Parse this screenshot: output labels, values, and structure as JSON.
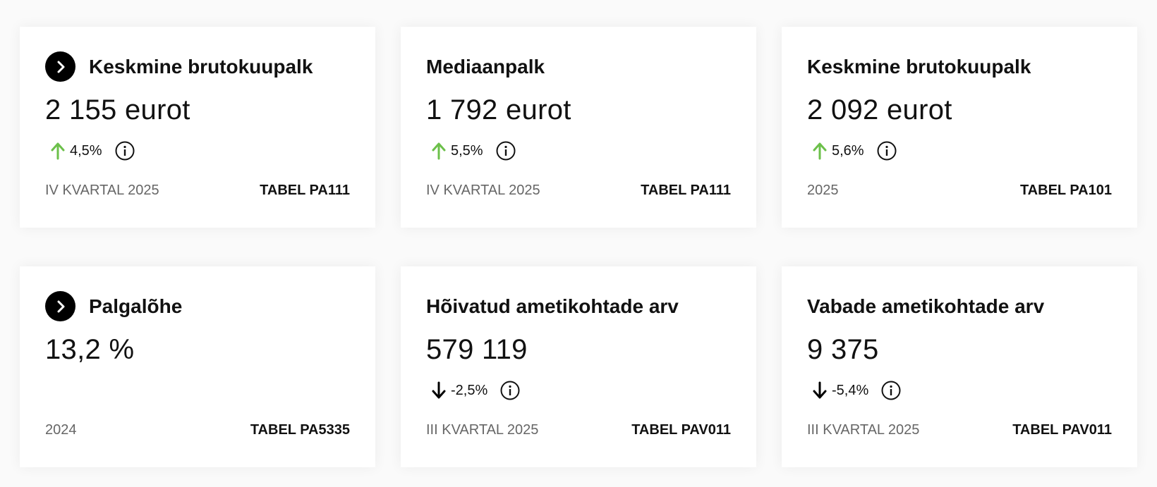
{
  "colors": {
    "up_arrow": "#6cc04a",
    "down_arrow": "#000000",
    "card_bg": "#ffffff",
    "page_bg": "#fafafa"
  },
  "cards": [
    {
      "title": "Keskmine brutokuupalk",
      "has_nav_icon": true,
      "value": "2 155 eurot",
      "change": "4,5%",
      "direction": "up",
      "period": "IV KVARTAL 2025",
      "table": "TABEL PA111"
    },
    {
      "title": "Mediaanpalk",
      "has_nav_icon": false,
      "value": "1 792 eurot",
      "change": "5,5%",
      "direction": "up",
      "period": "IV KVARTAL 2025",
      "table": "TABEL PA111"
    },
    {
      "title": "Keskmine brutokuupalk",
      "has_nav_icon": false,
      "value": "2 092 eurot",
      "change": "5,6%",
      "direction": "up",
      "period": "2025",
      "table": "TABEL PA101"
    },
    {
      "title": "Palgalõhe",
      "has_nav_icon": true,
      "value": "13,2 %",
      "change": "",
      "direction": "",
      "period": "2024",
      "table": "TABEL PA5335"
    },
    {
      "title": "Hõivatud ametikohtade arv",
      "has_nav_icon": false,
      "value": "579 119",
      "change": "-2,5%",
      "direction": "down",
      "period": "III KVARTAL 2025",
      "table": "TABEL PAV011"
    },
    {
      "title": "Vabade ametikohtade arv",
      "has_nav_icon": false,
      "value": "9 375",
      "change": "-5,4%",
      "direction": "down",
      "period": "III KVARTAL 2025",
      "table": "TABEL PAV011"
    }
  ]
}
